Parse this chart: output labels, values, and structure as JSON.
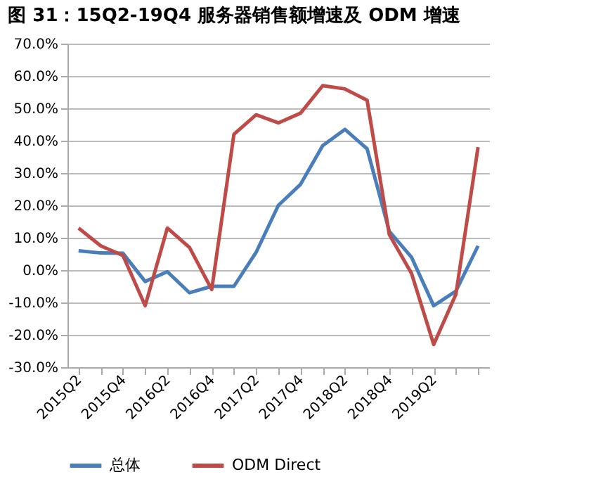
{
  "chart_data": {
    "type": "line",
    "title": "图 31：15Q2-19Q4 服务器销售额增速及 ODM 增速",
    "categories": [
      "2015Q2",
      null,
      "2015Q4",
      null,
      "2016Q2",
      null,
      "2016Q4",
      null,
      "2017Q2",
      null,
      "2017Q4",
      null,
      "2018Q2",
      null,
      "2018Q4",
      null,
      "2019Q2",
      null,
      null
    ],
    "series": [
      {
        "name": "总体",
        "color": "#4a7ebb",
        "values": [
          6,
          5.3,
          5.2,
          -3.5,
          -0.5,
          -7,
          -5,
          -5,
          5.5,
          20,
          26.5,
          38.5,
          43.5,
          37.5,
          12,
          4,
          -11,
          -6.5,
          7.5
        ]
      },
      {
        "name": "ODM Direct",
        "color": "#be4b48",
        "values": [
          13,
          7.5,
          4.5,
          -11,
          13,
          7,
          -6,
          42,
          48,
          45.5,
          48.5,
          57,
          56,
          52.5,
          11,
          -1,
          -23,
          -7.5,
          38
        ]
      }
    ],
    "ylim": [
      -30,
      70
    ],
    "yticks": [
      {
        "value": -30,
        "label": "-30.0%"
      },
      {
        "value": -20,
        "label": "-20.0%"
      },
      {
        "value": -10,
        "label": "-10.0%"
      },
      {
        "value": 0,
        "label": "0.0%"
      },
      {
        "value": 10,
        "label": "10.0%"
      },
      {
        "value": 20,
        "label": "20.0%"
      },
      {
        "value": 30,
        "label": "30.0%"
      },
      {
        "value": 40,
        "label": "40.0%"
      },
      {
        "value": 50,
        "label": "50.0%"
      },
      {
        "value": 60,
        "label": "60.0%"
      },
      {
        "value": 70,
        "label": "70.0%"
      }
    ],
    "grid": "y",
    "legend": "bottom",
    "marker": "none",
    "line_style": "solid"
  }
}
